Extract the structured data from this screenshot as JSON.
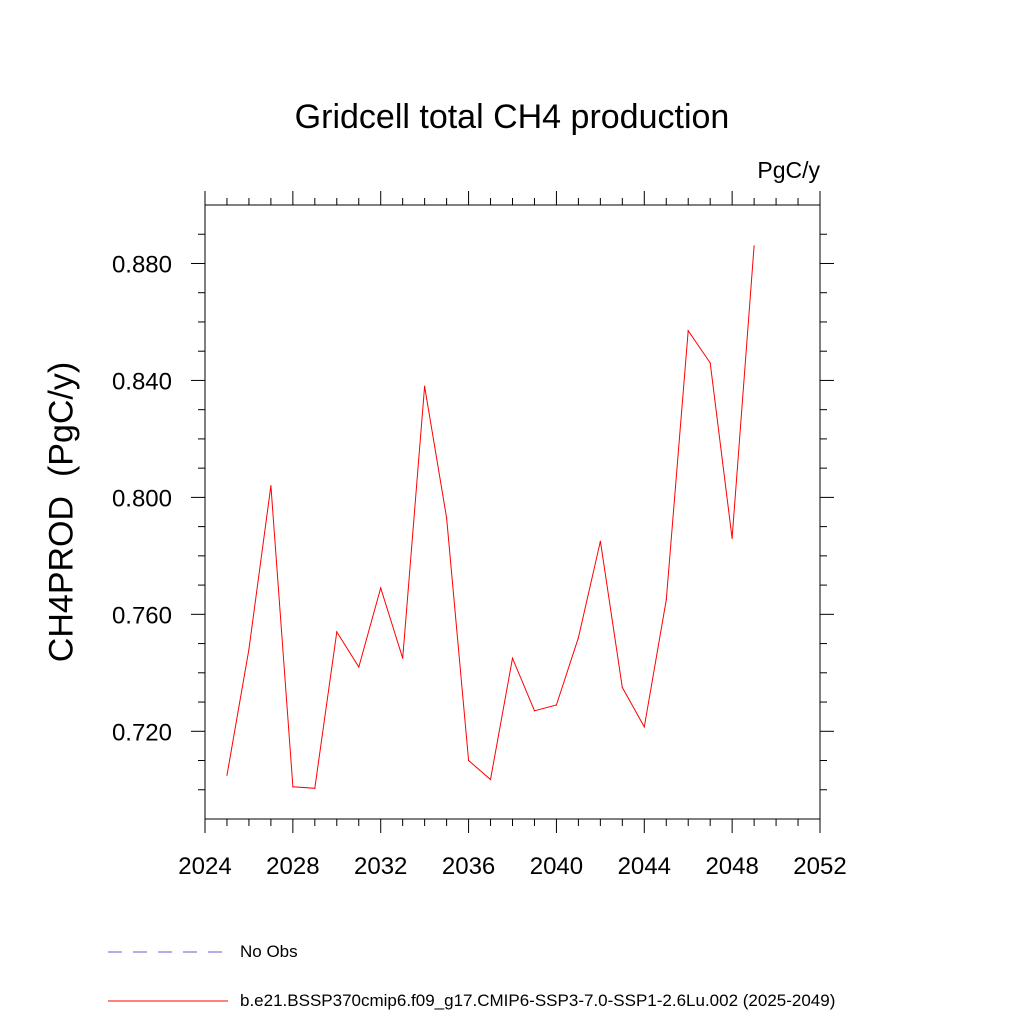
{
  "chart_data": {
    "type": "line",
    "title": "Gridcell total CH4 production",
    "units_label": "PgC/y",
    "ylabel": "CH4PROD  (PgC/y)",
    "xlabel": "",
    "xlim": [
      2024,
      2052
    ],
    "ylim": [
      0.69,
      0.9
    ],
    "x_ticks": [
      2024,
      2028,
      2032,
      2036,
      2040,
      2044,
      2048,
      2052
    ],
    "x_tick_labels": [
      "2024",
      "2028",
      "2032",
      "2036",
      "2040",
      "2044",
      "2048",
      "2052"
    ],
    "y_ticks": [
      0.72,
      0.76,
      0.8,
      0.84,
      0.88
    ],
    "y_tick_labels": [
      "0.720",
      "0.760",
      "0.800",
      "0.840",
      "0.880"
    ],
    "grid": false,
    "legend_position": "bottom-left",
    "series": [
      {
        "name": "b.e21.BSSP370cmip6.f09_g17.CMIP6-SSP3-7.0-SSP1-2.6Lu.002 (2025-2049)",
        "color": "#ff0000",
        "dash": "solid",
        "x": [
          2025,
          2026,
          2027,
          2028,
          2029,
          2030,
          2031,
          2032,
          2033,
          2034,
          2035,
          2036,
          2037,
          2038,
          2039,
          2040,
          2041,
          2042,
          2043,
          2044,
          2045,
          2046,
          2047,
          2048,
          2049
        ],
        "y": [
          0.705,
          0.748,
          0.804,
          0.701,
          0.7005,
          0.754,
          0.742,
          0.769,
          0.745,
          0.838,
          0.793,
          0.71,
          0.7035,
          0.745,
          0.727,
          0.729,
          0.752,
          0.785,
          0.735,
          0.7215,
          0.765,
          0.857,
          0.846,
          0.786,
          0.886
        ]
      }
    ],
    "legend": [
      {
        "name": "No Obs",
        "color": "#6a5acd",
        "dash": "dashed"
      },
      {
        "name": "b.e21.BSSP370cmip6.f09_g17.CMIP6-SSP3-7.0-SSP1-2.6Lu.002 (2025-2049)",
        "color": "#ff0000",
        "dash": "solid"
      }
    ]
  }
}
